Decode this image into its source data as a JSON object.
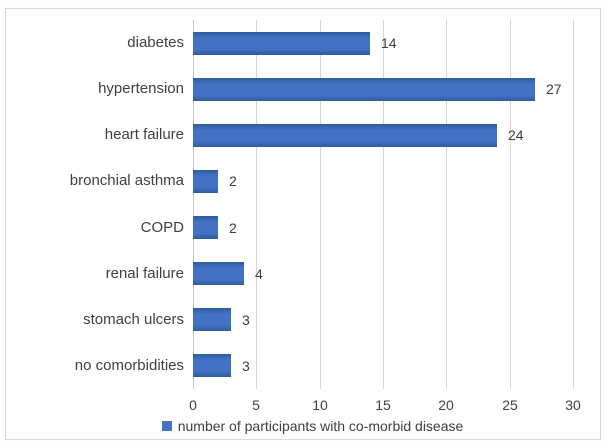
{
  "chart_data": {
    "type": "bar",
    "orientation": "horizontal",
    "categories": [
      "diabetes",
      "hypertension",
      "heart failure",
      "bronchial asthma",
      "COPD",
      "renal failure",
      "stomach ulcers",
      "no comorbidities"
    ],
    "values": [
      14,
      27,
      24,
      2,
      2,
      4,
      3,
      3
    ],
    "title": "",
    "xlabel": "",
    "ylabel": "",
    "xlim": [
      0,
      30
    ],
    "xticks": [
      0,
      5,
      10,
      15,
      20,
      25,
      30
    ],
    "grid": "vertical-only",
    "legend": "number of participants with co-morbid disease",
    "legend_position": "bottom-center",
    "value_labels": "outside-end"
  },
  "colors": {
    "bar_fill": "#4472c4",
    "bar_edge": "#2e5c9e",
    "gridline": "#d7d7d7",
    "zero_axis": "#c6c6c6",
    "text": "#3f3f3f",
    "frame_border": "#d9d9d9",
    "background": "#ffffff"
  }
}
